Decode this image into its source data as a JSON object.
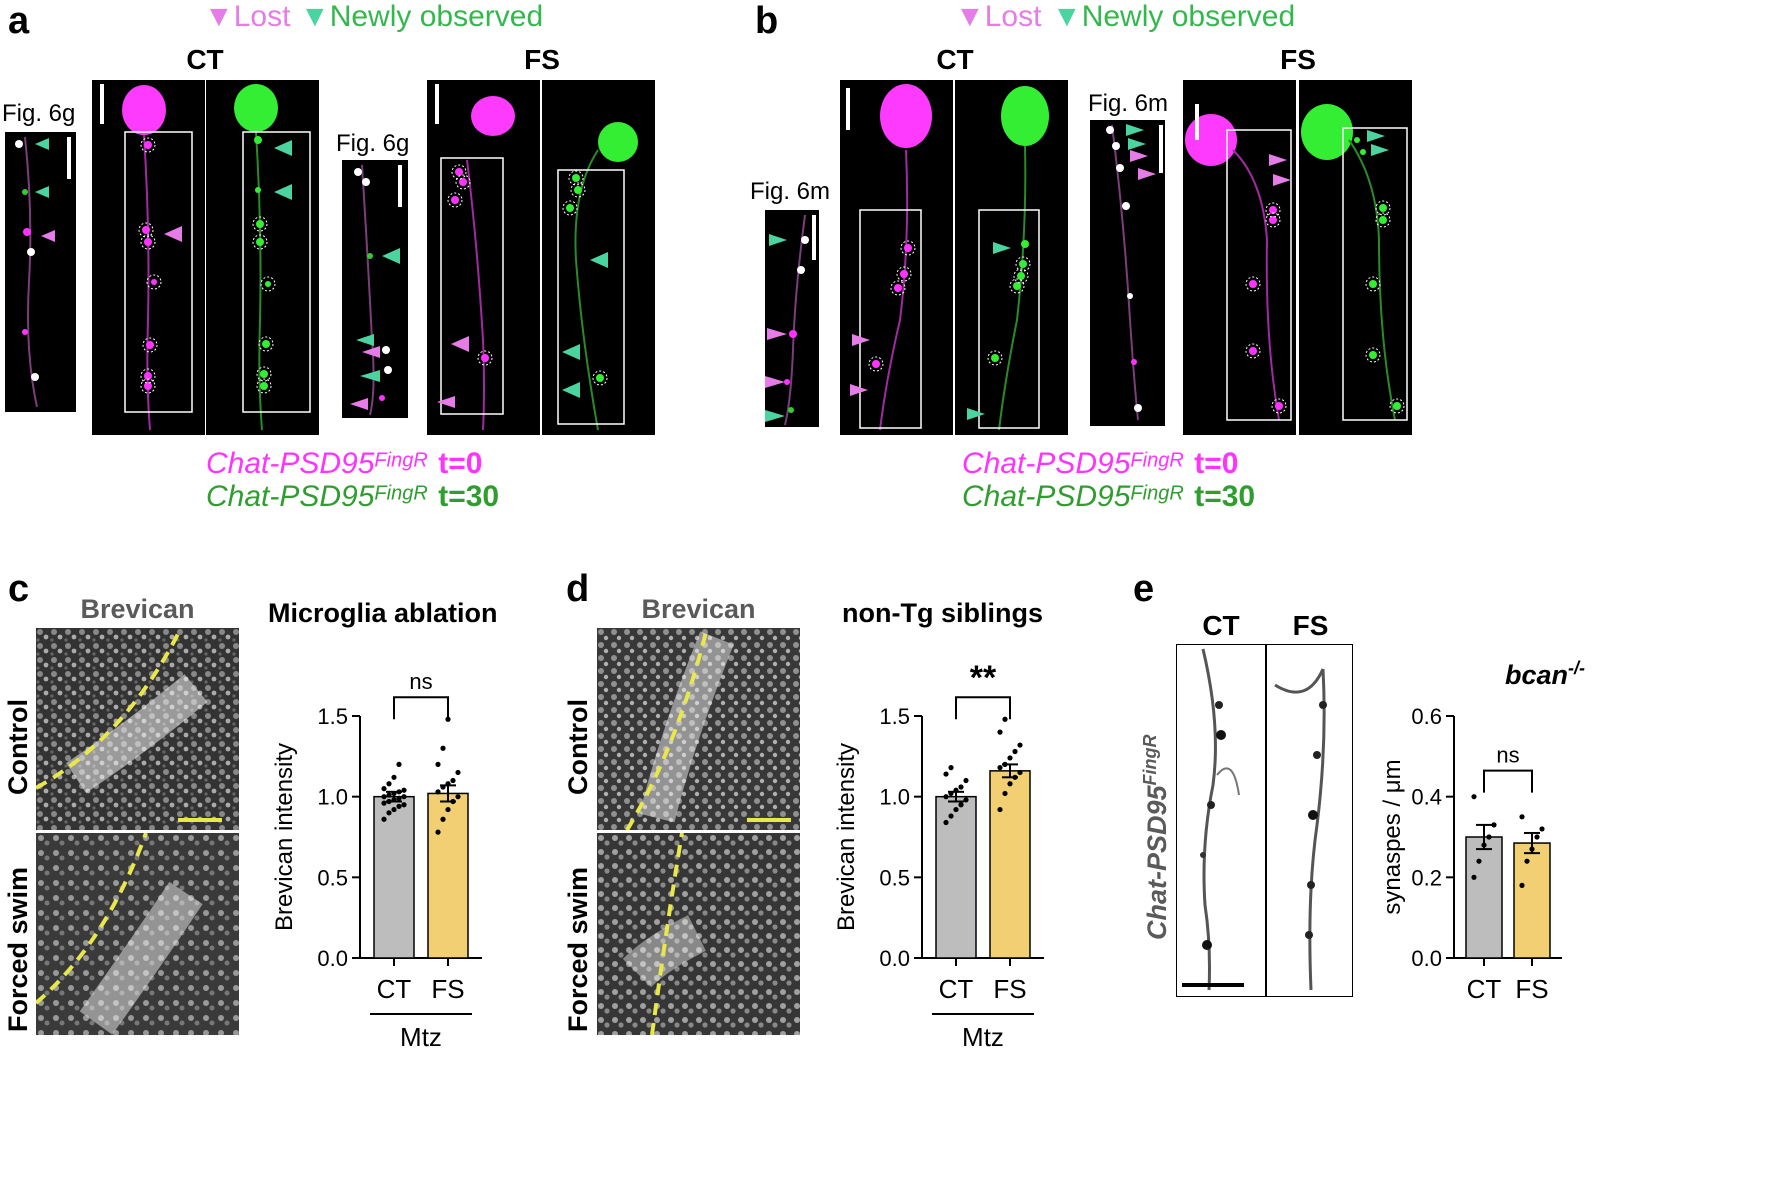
{
  "panels": {
    "a": {
      "letter": "a",
      "legend_lost": "Lost",
      "legend_new": "Newly observed",
      "title_ct": "CT",
      "title_fs": "FS",
      "figref1": "Fig. 6g",
      "figref2": "Fig. 6g",
      "label_gene_1": "Chat-PSD95",
      "label_sup_1": "FingR",
      "label_t1": "t=0",
      "label_gene_2": "Chat-PSD95",
      "label_sup_2": "FingR",
      "label_t2": "t=30"
    },
    "b": {
      "letter": "b",
      "legend_lost": "Lost",
      "legend_new": "Newly observed",
      "title_ct": "CT",
      "title_fs": "FS",
      "figref1": "Fig. 6m",
      "figref2": "Fig. 6m",
      "label_gene_1": "Chat-PSD95",
      "label_sup_1": "FingR",
      "label_t1": "t=0",
      "label_gene_2": "Chat-PSD95",
      "label_sup_2": "FingR",
      "label_t2": "t=30"
    },
    "c": {
      "letter": "c",
      "image_title": "Brevican",
      "row1": "Control",
      "row2": "Forced swim"
    },
    "d": {
      "letter": "d",
      "image_title": "Brevican",
      "row1": "Control",
      "row2": "Forced swim"
    },
    "e": {
      "letter": "e",
      "title_ct": "CT",
      "title_fs": "FS",
      "side_gene": "Chat-PSD95",
      "side_sup": "FingR"
    }
  },
  "colors": {
    "magenta": "#ff33ff",
    "green": "#33dd33",
    "lost": "#e57ce8",
    "new": "#4ad4a0",
    "bar_ct": "#bdbdbd",
    "bar_fs": "#f2cf73",
    "yellow_line": "#e8e84a",
    "label_green": "#2f9e2f"
  },
  "chart_data": [
    {
      "type": "bar",
      "title": "Microglia ablation",
      "categories": [
        "CT",
        "FS"
      ],
      "values": [
        1.0,
        1.02
      ],
      "errors": [
        0.03,
        0.05
      ],
      "ylabel": "Brevican intensity",
      "ylim": [
        0.0,
        1.5
      ],
      "yticks": [
        "0.0",
        "0.5",
        "1.0",
        "1.5"
      ],
      "group_label": "Mtz",
      "significance": "ns",
      "points": [
        [
          0.86,
          0.9,
          0.92,
          0.94,
          0.95,
          0.96,
          0.97,
          0.98,
          0.99,
          1.0,
          1.0,
          1.01,
          1.02,
          1.03,
          1.04,
          1.05,
          1.08,
          1.12,
          1.2
        ],
        [
          0.78,
          0.86,
          0.92,
          0.97,
          1.0,
          1.03,
          1.06,
          1.08,
          1.1,
          1.15,
          1.2,
          1.3,
          1.48
        ]
      ]
    },
    {
      "type": "bar",
      "title": "non-Tg siblings",
      "categories": [
        "CT",
        "FS"
      ],
      "values": [
        1.0,
        1.16
      ],
      "errors": [
        0.03,
        0.04
      ],
      "ylabel": "Brevican intensity",
      "ylim": [
        0.0,
        1.5
      ],
      "yticks": [
        "0.0",
        "0.5",
        "1.0",
        "1.5"
      ],
      "group_label": "Mtz",
      "significance": "**",
      "points": [
        [
          0.84,
          0.88,
          0.92,
          0.95,
          0.98,
          1.0,
          1.02,
          1.04,
          1.06,
          1.1,
          1.14,
          1.18
        ],
        [
          0.92,
          1.02,
          1.08,
          1.12,
          1.15,
          1.18,
          1.2,
          1.24,
          1.28,
          1.32,
          1.4,
          1.48
        ]
      ]
    },
    {
      "type": "bar",
      "title": "bcan",
      "title_sup": "-/-",
      "categories": [
        "CT",
        "FS"
      ],
      "values": [
        0.3,
        0.285
      ],
      "errors": [
        0.03,
        0.025
      ],
      "ylabel": "synaspes / μm",
      "ylim": [
        0.0,
        0.6
      ],
      "yticks": [
        "0.0",
        "0.2",
        "0.4",
        "0.6"
      ],
      "significance": "ns",
      "points": [
        [
          0.2,
          0.24,
          0.28,
          0.3,
          0.33,
          0.4
        ],
        [
          0.18,
          0.24,
          0.27,
          0.3,
          0.32,
          0.35
        ]
      ]
    }
  ]
}
